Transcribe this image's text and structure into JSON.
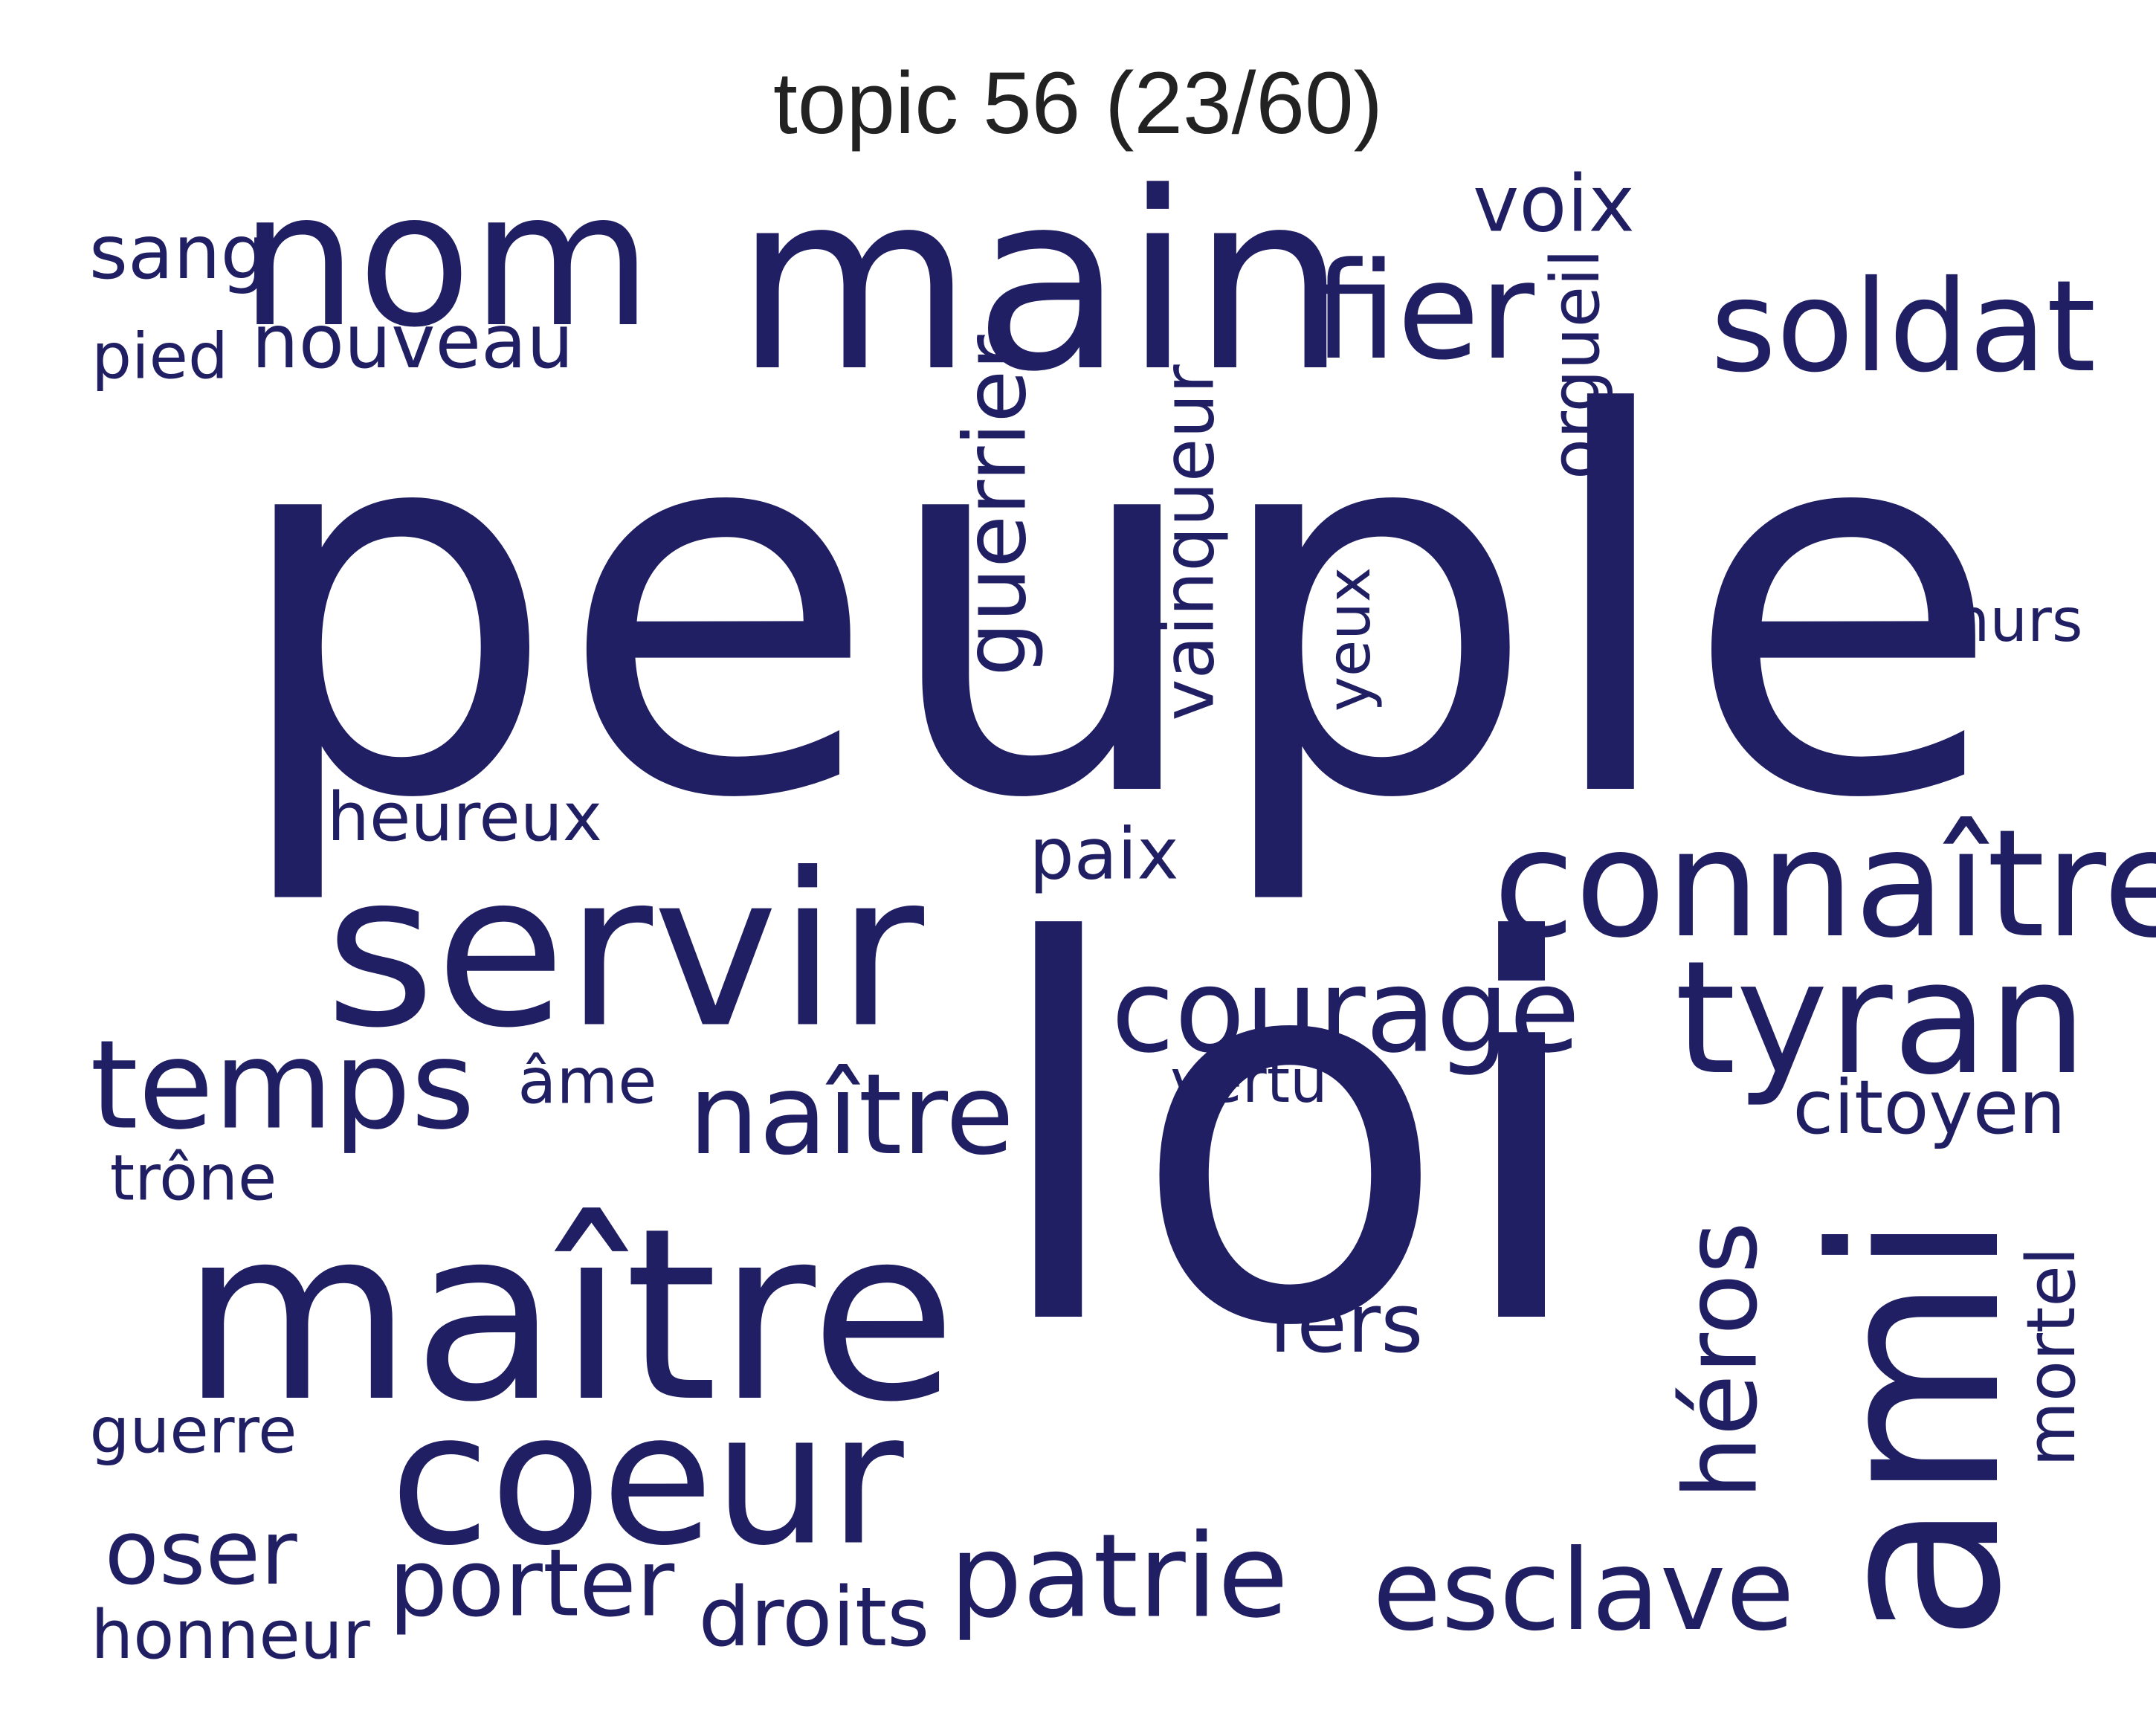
{
  "title": "topic 56 (23/60)",
  "word_color": "#211f63",
  "title_color": "#222222",
  "words": [
    {
      "text": "peuple",
      "orientation": "horizontal"
    },
    {
      "text": "loi",
      "orientation": "horizontal"
    },
    {
      "text": "main",
      "orientation": "horizontal"
    },
    {
      "text": "maître",
      "orientation": "horizontal"
    },
    {
      "text": "servir",
      "orientation": "horizontal"
    },
    {
      "text": "ami",
      "orientation": "vertical"
    },
    {
      "text": "coeur",
      "orientation": "horizontal"
    },
    {
      "text": "nom",
      "orientation": "horizontal"
    },
    {
      "text": "connaître",
      "orientation": "horizontal"
    },
    {
      "text": "tyran",
      "orientation": "horizontal"
    },
    {
      "text": "soldat",
      "orientation": "horizontal"
    },
    {
      "text": "fier",
      "orientation": "horizontal"
    },
    {
      "text": "courage",
      "orientation": "horizontal"
    },
    {
      "text": "temps",
      "orientation": "horizontal"
    },
    {
      "text": "naître",
      "orientation": "horizontal"
    },
    {
      "text": "patrie",
      "orientation": "horizontal"
    },
    {
      "text": "esclave",
      "orientation": "horizontal"
    },
    {
      "text": "héros",
      "orientation": "vertical"
    },
    {
      "text": "guerrier",
      "orientation": "vertical"
    },
    {
      "text": "vainqueur",
      "orientation": "vertical"
    },
    {
      "text": "porter",
      "orientation": "horizontal"
    },
    {
      "text": "nouveau",
      "orientation": "horizontal"
    },
    {
      "text": "voix",
      "orientation": "horizontal"
    },
    {
      "text": "orgueil",
      "orientation": "vertical"
    },
    {
      "text": "oser",
      "orientation": "horizontal"
    },
    {
      "text": "droits",
      "orientation": "horizontal"
    },
    {
      "text": "fers",
      "orientation": "horizontal"
    },
    {
      "text": "citoyen",
      "orientation": "horizontal"
    },
    {
      "text": "mortel",
      "orientation": "vertical"
    },
    {
      "text": "yeux",
      "orientation": "vertical"
    },
    {
      "text": "sang",
      "orientation": "horizontal"
    },
    {
      "text": "heureux",
      "orientation": "horizontal"
    },
    {
      "text": "paix",
      "orientation": "horizontal"
    },
    {
      "text": "honneur",
      "orientation": "horizontal"
    },
    {
      "text": "guerre",
      "orientation": "horizontal"
    },
    {
      "text": "pied",
      "orientation": "horizontal"
    },
    {
      "text": "murs",
      "orientation": "horizontal"
    },
    {
      "text": "vertu",
      "orientation": "horizontal"
    },
    {
      "text": "trône",
      "orientation": "horizontal"
    },
    {
      "text": "âme",
      "orientation": "horizontal"
    }
  ]
}
